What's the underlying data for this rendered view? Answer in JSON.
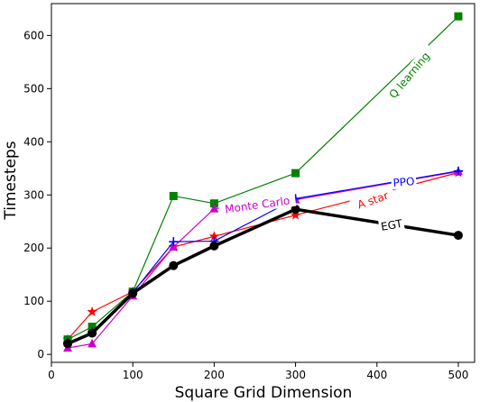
{
  "chart_data": {
    "type": "line",
    "xlabel": "Square Grid Dimension",
    "ylabel": "Timesteps",
    "xlim": [
      0,
      520
    ],
    "ylim": [
      -15,
      660
    ],
    "xticks": [
      0,
      100,
      200,
      300,
      400,
      500
    ],
    "yticks": [
      0,
      100,
      200,
      300,
      400,
      500,
      600
    ],
    "x": [
      20,
      50,
      100,
      150,
      200,
      300,
      500
    ],
    "series": [
      {
        "name": "A star",
        "color": "#ff0000",
        "marker": "star",
        "lineWidth": 1.2,
        "values": [
          28,
          80,
          118,
          202,
          222,
          262,
          342
        ],
        "label": {
          "x": 395,
          "y": 290,
          "angle": -19
        }
      },
      {
        "name": "Q learning",
        "color": "#008000",
        "marker": "square",
        "lineWidth": 1.2,
        "values": [
          28,
          52,
          118,
          298,
          284,
          341,
          636
        ],
        "label": {
          "x": 440,
          "y": 525,
          "angle": -50
        }
      },
      {
        "name": "Monte Carlo",
        "color": "#cc00cc",
        "marker": "triangle",
        "lineWidth": 1.2,
        "values": [
          12,
          20,
          110,
          202,
          274,
          291,
          344
        ],
        "label": {
          "x": 253,
          "y": 281,
          "angle": -8
        }
      },
      {
        "name": "PPO",
        "color": "#0000ff",
        "marker": "plus",
        "lineWidth": 1.2,
        "values": [
          22,
          42,
          116,
          212,
          213,
          293,
          345
        ],
        "label": {
          "x": 433,
          "y": 324,
          "angle": -5
        }
      },
      {
        "name": "EGT",
        "color": "#000000",
        "marker": "circle",
        "lineWidth": 3.5,
        "values": [
          20,
          40,
          115,
          167,
          204,
          273,
          224
        ],
        "label": {
          "x": 418,
          "y": 243,
          "angle": -10
        }
      }
    ]
  }
}
